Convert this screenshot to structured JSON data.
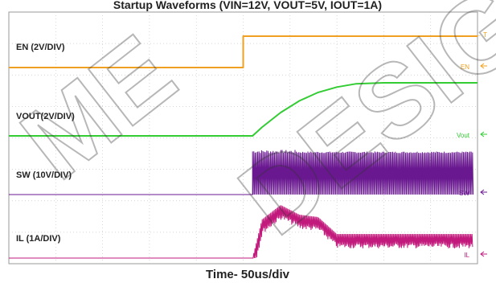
{
  "chart_data": {
    "type": "line",
    "title": "Startup Waveforms (VIN=12V, VOUT=5V, IOUT=1A)",
    "xlabel": "Time- 50us/div",
    "x_unit": "us",
    "x_per_div": 50,
    "x_range_us": [
      -250,
      250
    ],
    "grid": true,
    "series": [
      {
        "name": "EN (2V/DIV)",
        "color": "#f0a020",
        "marker": "EN",
        "volts_per_div": 2,
        "description": "step",
        "x_us": [
          -250,
          0,
          0,
          250
        ],
        "y_volts": [
          0,
          0,
          2.0,
          2.0
        ]
      },
      {
        "name": "VOUT(2V/DIV)",
        "color": "#33cc33",
        "marker": "Vout",
        "volts_per_div": 2,
        "x_us": [
          -250,
          10,
          20,
          40,
          60,
          80,
          100,
          120,
          150,
          250
        ],
        "y_volts": [
          0,
          0,
          0.8,
          2.2,
          3.3,
          4.1,
          4.6,
          4.9,
          5.0,
          5.0
        ]
      },
      {
        "name": "SW (10V/DIV)",
        "color": "#6a1890",
        "marker": "SW",
        "volts_per_div": 10,
        "x_us": [
          -250,
          10,
          10,
          250
        ],
        "y_volts": [
          0,
          0,
          12,
          12
        ]
      },
      {
        "name": "IL (1A/DIV)",
        "color": "#c21a7c",
        "marker": "IL",
        "amps_per_div": 1,
        "x_us": [
          -250,
          10,
          20,
          40,
          60,
          80,
          100,
          250
        ],
        "y_amps": [
          0,
          0,
          1.6,
          2.2,
          1.8,
          1.7,
          1.0,
          1.0
        ]
      }
    ]
  }
}
